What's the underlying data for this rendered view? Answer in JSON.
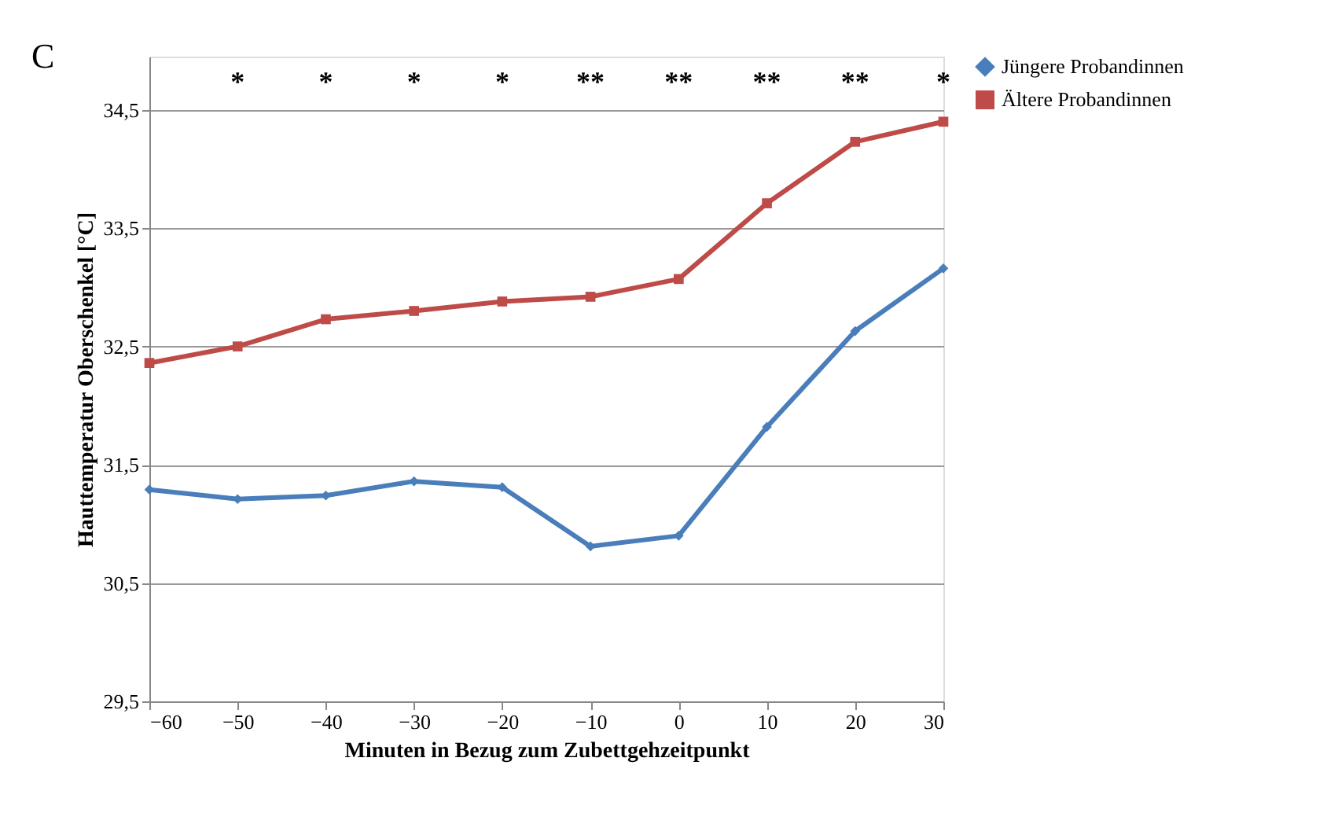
{
  "chart_data": {
    "type": "line",
    "xlabel": "Minuten  in Bezug zum Zubettgehzeitpunkt",
    "ylabel": "Hauttemperatur  Oberschenkel [°C]",
    "x": [
      -60,
      -50,
      -40,
      -30,
      -20,
      -10,
      0,
      10,
      20,
      30
    ],
    "series": [
      {
        "name": "Jüngere Probandinnen",
        "color": "#4a7ebb",
        "marker": "diamond",
        "values": [
          31.29,
          31.21,
          31.24,
          31.36,
          31.31,
          30.81,
          30.9,
          31.82,
          32.63,
          33.16
        ]
      },
      {
        "name": "Ältere Probandinnen",
        "color": "#be4b48",
        "marker": "square",
        "values": [
          32.36,
          32.5,
          32.73,
          32.8,
          32.88,
          32.92,
          33.07,
          33.71,
          34.23,
          34.4
        ]
      }
    ],
    "xlim": [
      -60,
      30
    ],
    "xticks": [
      -60,
      -50,
      -40,
      -30,
      -20,
      -10,
      0,
      10,
      20,
      30
    ],
    "ylim": [
      29.5,
      34.95
    ],
    "yticks": [
      {
        "value": 29.5,
        "label": "29,5"
      },
      {
        "value": 30.5,
        "label": "30,5"
      },
      {
        "value": 31.5,
        "label": "31,5"
      },
      {
        "value": 32.5,
        "label": "32,5"
      },
      {
        "value": 33.5,
        "label": "33,5"
      },
      {
        "value": 34.5,
        "label": "34,5"
      }
    ],
    "grid": "y",
    "legend": "right",
    "line_style": "solid",
    "annotations": [
      "C",
      "*",
      "*",
      "*",
      "*",
      "**",
      "**",
      "**",
      "**",
      "*"
    ]
  }
}
